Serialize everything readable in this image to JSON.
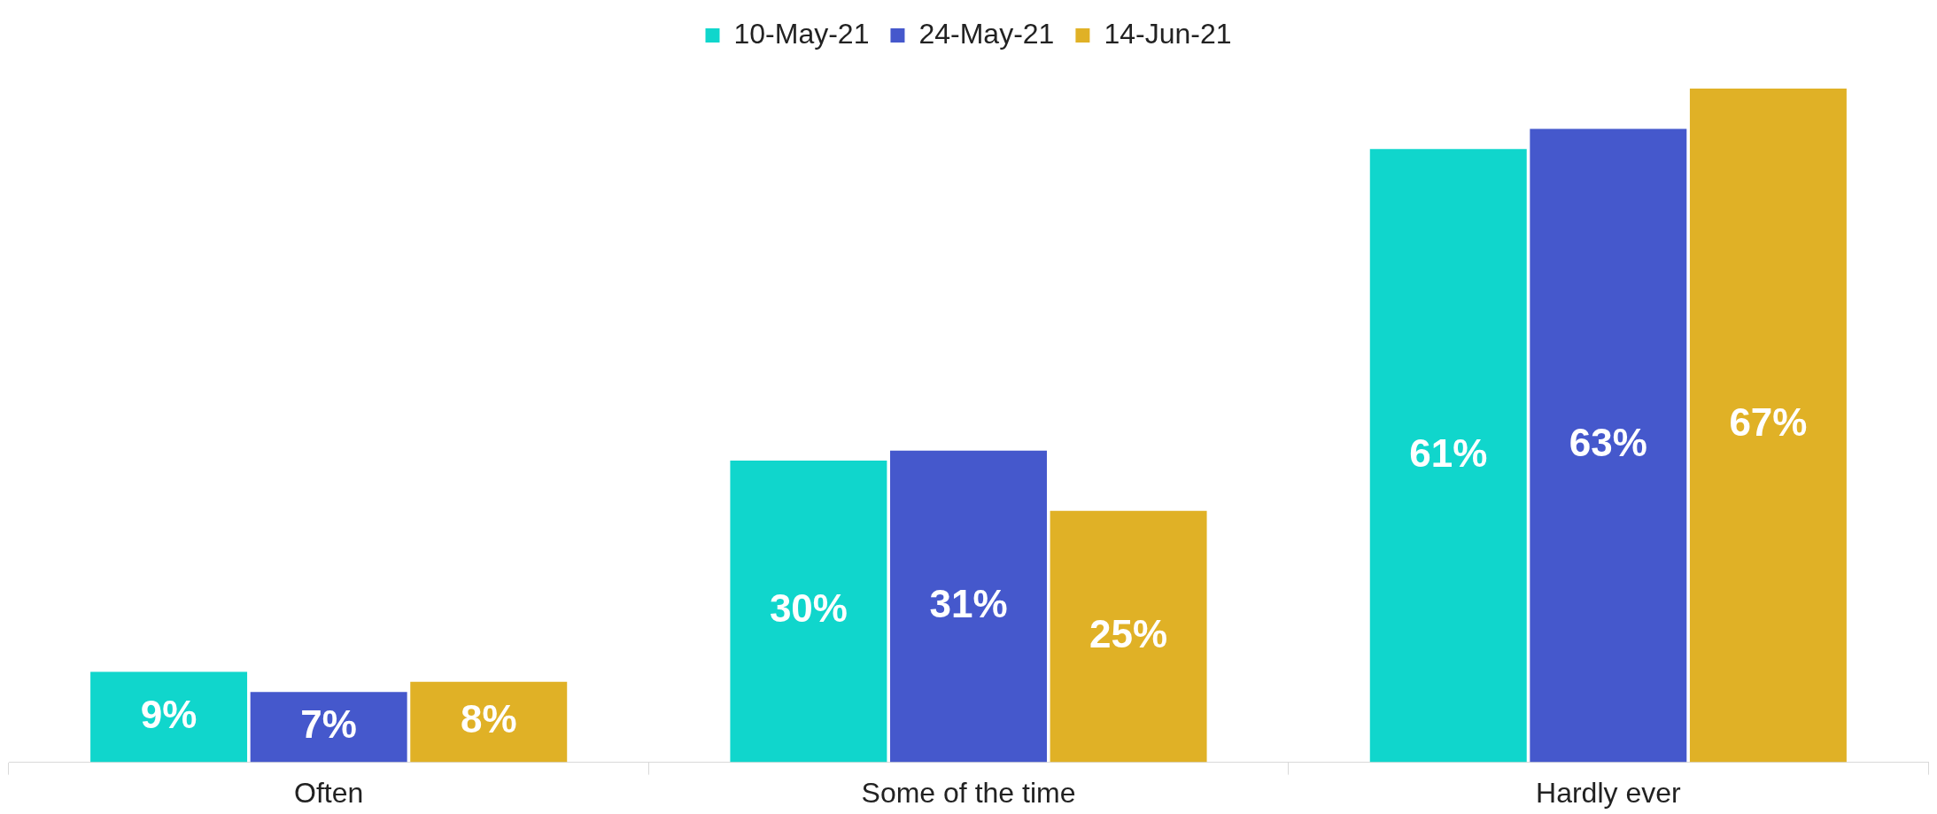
{
  "chart_data": {
    "type": "bar",
    "categories": [
      "Often",
      "Some of the time",
      "Hardly ever"
    ],
    "series": [
      {
        "name": "10-May-21",
        "color": "#10d6cc",
        "values": [
          9,
          30,
          61
        ],
        "value_labels": [
          "9%",
          "30%",
          "61%"
        ]
      },
      {
        "name": "24-May-21",
        "color": "#4558cc",
        "values": [
          7,
          31,
          63
        ],
        "value_labels": [
          "7%",
          "31%",
          "63%"
        ]
      },
      {
        "name": "14-Jun-21",
        "color": "#e0b126",
        "values": [
          8,
          25,
          67
        ],
        "value_labels": [
          "8%",
          "25%",
          "67%"
        ]
      }
    ],
    "legend": "top",
    "grid": false
  }
}
